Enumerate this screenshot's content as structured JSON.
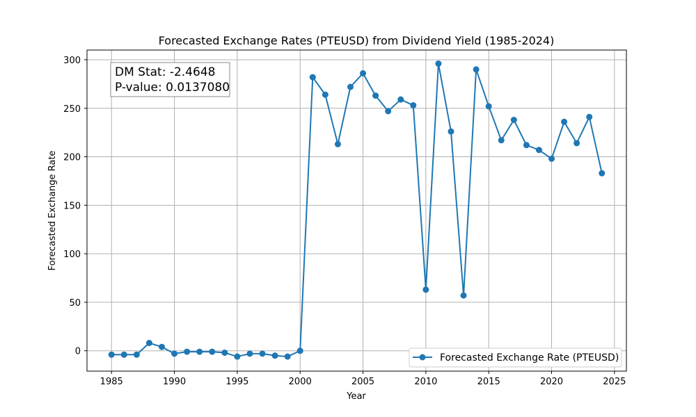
{
  "chart_data": {
    "type": "line",
    "title": "Forecasted Exchange Rates (PTEUSD) from Dividend Yield (1985-2024)",
    "xlabel": "Year",
    "ylabel": "Forecasted Exchange Rate",
    "xlim": [
      1983.05,
      2025.95
    ],
    "ylim": [
      -21,
      310
    ],
    "xticks": [
      1985,
      1990,
      1995,
      2000,
      2005,
      2010,
      2015,
      2020,
      2025
    ],
    "yticks": [
      0,
      50,
      100,
      150,
      200,
      250,
      300
    ],
    "grid": true,
    "legend_position": "lower-right",
    "series": [
      {
        "name": "Forecasted Exchange Rate (PTEUSD)",
        "color": "#1f77b4",
        "marker": "circle",
        "x": [
          1985,
          1986,
          1987,
          1988,
          1989,
          1990,
          1991,
          1992,
          1993,
          1994,
          1995,
          1996,
          1997,
          1998,
          1999,
          2000,
          2001,
          2002,
          2003,
          2004,
          2005,
          2006,
          2007,
          2008,
          2009,
          2010,
          2011,
          2012,
          2013,
          2014,
          2015,
          2016,
          2017,
          2018,
          2019,
          2020,
          2021,
          2022,
          2023,
          2024
        ],
        "y": [
          -4,
          -4,
          -4,
          8,
          4,
          -3,
          -1,
          -1,
          -1,
          -2,
          -6,
          -3,
          -3,
          -5,
          -6,
          0,
          282,
          264,
          213,
          272,
          286,
          263,
          247,
          259,
          253,
          63,
          296,
          226,
          57,
          290,
          252,
          217,
          238,
          212,
          207,
          198,
          236,
          214,
          241,
          183
        ]
      }
    ],
    "annotation": {
      "line1": "DM Stat: -2.4648",
      "line2": "P-value: 0.0137080"
    }
  }
}
